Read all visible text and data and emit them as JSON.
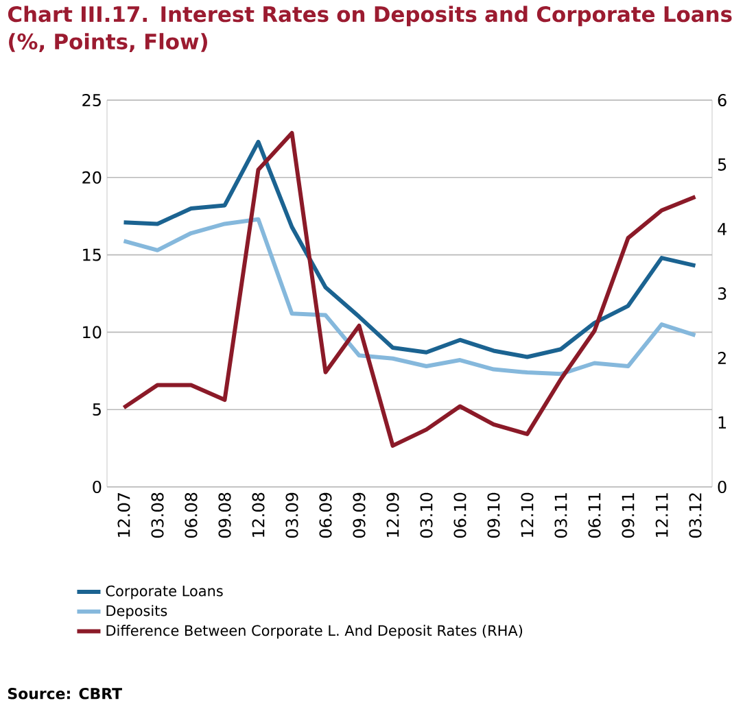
{
  "chart_data": {
    "type": "line",
    "title": "Chart III.17. Interest Rates on Deposits and Corporate Loans (%, Points, Flow)",
    "categories": [
      "12.07",
      "03.08",
      "06.08",
      "09.08",
      "12.08",
      "03.09",
      "06.09",
      "09.09",
      "12.09",
      "03.10",
      "06.10",
      "09.10",
      "12.10",
      "03.11",
      "06.11",
      "09.11",
      "12.11",
      "03.12"
    ],
    "series": [
      {
        "name": "Corporate Loans",
        "color": "#1b6391",
        "values": [
          17.1,
          17.0,
          18.0,
          18.2,
          22.3,
          16.8,
          12.9,
          11.0,
          9.0,
          8.7,
          9.5,
          8.8,
          8.4,
          8.9,
          10.6,
          11.7,
          14.8,
          14.3
        ]
      },
      {
        "name": "Deposits",
        "color": "#85b8dc",
        "values": [
          15.9,
          15.3,
          16.4,
          17.0,
          17.3,
          11.2,
          11.1,
          8.5,
          8.3,
          7.8,
          8.2,
          7.6,
          7.4,
          7.3,
          8.0,
          7.8,
          10.5,
          9.8
        ]
      },
      {
        "name": "Difference Between Corporate L. And Deposit Rates (RHA)",
        "color": "#8b1a28",
        "axis": "y2",
        "values": [
          1.23,
          1.58,
          1.58,
          1.35,
          4.92,
          5.49,
          1.78,
          2.5,
          0.64,
          0.89,
          1.25,
          0.97,
          0.82,
          1.67,
          2.42,
          3.86,
          4.29,
          4.5
        ]
      }
    ],
    "ylim": [
      0,
      25
    ],
    "yticks": [
      0,
      5,
      10,
      15,
      20,
      25
    ],
    "y2lim": [
      0,
      6
    ],
    "y2ticks": [
      0,
      1,
      2,
      3,
      4,
      5,
      6
    ],
    "grid": "y",
    "legend": "bottom",
    "annotations": [
      "Source: CBRT"
    ]
  }
}
